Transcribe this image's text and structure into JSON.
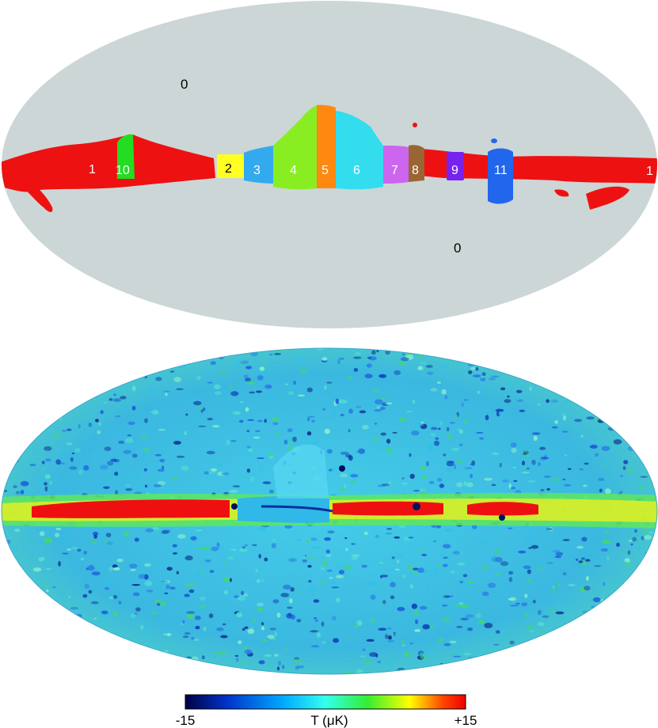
{
  "mask_map": {
    "outside_label_top": "0",
    "outside_label_bottom": "0",
    "regions": [
      {
        "id": "1",
        "label": "1",
        "color": "#ee1111"
      },
      {
        "id": "2",
        "label": "2",
        "color": "#ffff22"
      },
      {
        "id": "3",
        "label": "3",
        "color": "#33aaee"
      },
      {
        "id": "4",
        "label": "4",
        "color": "#88ee22"
      },
      {
        "id": "5",
        "label": "5",
        "color": "#ff8811"
      },
      {
        "id": "6",
        "label": "6",
        "color": "#33ddee"
      },
      {
        "id": "7",
        "label": "7",
        "color": "#cc66ee"
      },
      {
        "id": "8",
        "label": "8",
        "color": "#996633"
      },
      {
        "id": "9",
        "label": "9",
        "color": "#7722ee"
      },
      {
        "id": "10",
        "label": "10",
        "color": "#22dd22"
      },
      {
        "id": "11",
        "label": "11",
        "color": "#2266ee"
      }
    ],
    "background_color": "#ccd6d6"
  },
  "temperature_map": {
    "colorbar": {
      "min_label": "-15",
      "max_label": "+15",
      "unit_label": "T (μK)",
      "min": -15,
      "max": 15,
      "stops": [
        "#000044",
        "#0033cc",
        "#00aaff",
        "#33ffee",
        "#33ee33",
        "#ffff00",
        "#ff4400",
        "#ee0000"
      ]
    }
  }
}
